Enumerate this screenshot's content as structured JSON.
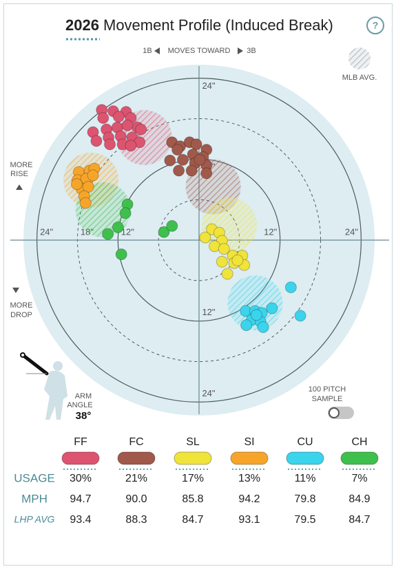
{
  "header": {
    "year": "2026",
    "title": "Movement Profile (Induced Break)",
    "help": "?"
  },
  "chart_data": {
    "type": "scatter",
    "direction": {
      "left": "1B",
      "middle": "MOVES TOWARD",
      "right": "3B"
    },
    "rise_label": [
      "MORE",
      "RISE"
    ],
    "drop_label": [
      "MORE",
      "DROP"
    ],
    "avg_legend": "MLB AVG.",
    "xlim": [
      -26,
      26
    ],
    "ylim": [
      -26,
      26
    ],
    "rings": [
      6,
      12,
      18,
      24
    ],
    "xticks": [
      {
        "value": -24,
        "label": "24\""
      },
      {
        "value": -18,
        "label": "18\""
      },
      {
        "value": -12,
        "label": "12\""
      },
      {
        "value": 12,
        "label": "12\""
      },
      {
        "value": 24,
        "label": "24\""
      }
    ],
    "yticks": [
      {
        "value": 24,
        "label": "24\""
      },
      {
        "value": 12,
        "label": "12\""
      },
      {
        "value": -12,
        "label": "12\""
      },
      {
        "value": -24,
        "label": "24\""
      }
    ],
    "series": [
      {
        "name": "FF",
        "color": "#dc5470",
        "avg_x": -8.1,
        "avg_y": 15.2,
        "x": [
          -14.4,
          -12.7,
          -10.8,
          -14.2,
          -11.9,
          -10.1,
          -9.1,
          -15.7,
          -13.7,
          -12.1,
          -10.6,
          -8.6,
          -15.2,
          -13.4,
          -11.6,
          -9.9,
          -13.2,
          -11.3,
          -8.8,
          -10.1
        ],
        "values": [
          19.3,
          19.1,
          19.0,
          18.1,
          18.3,
          18.1,
          16.7,
          16.0,
          16.4,
          16.7,
          17.0,
          16.4,
          14.7,
          15.2,
          15.4,
          15.2,
          14.2,
          14.2,
          14.5,
          14.0
        ]
      },
      {
        "name": "FC",
        "color": "#a0594a",
        "avg_x": 2.1,
        "avg_y": 7.9,
        "x": [
          -4.0,
          -2.8,
          -1.4,
          -0.4,
          -3.2,
          1.1,
          -0.9,
          0.6,
          -4.3,
          -2.4,
          -0.6,
          1.1,
          -3.0,
          -1.1,
          1.1,
          0.1
        ],
        "values": [
          14.5,
          13.9,
          14.5,
          14.2,
          13.4,
          13.4,
          12.7,
          12.3,
          11.8,
          11.9,
          11.4,
          11.1,
          10.3,
          10.3,
          9.9,
          11.9
        ]
      },
      {
        "name": "SL",
        "color": "#f0e33a",
        "avg_x": 4.5,
        "avg_y": 2.2,
        "x": [
          1.9,
          3.0,
          0.9,
          3.4,
          2.3,
          3.7,
          5.0,
          6.4,
          3.4,
          5.2,
          6.7,
          4.2,
          5.7
        ],
        "values": [
          1.6,
          1.1,
          0.4,
          -0.1,
          -0.9,
          -1.3,
          -2.3,
          -2.3,
          -3.2,
          -3.4,
          -3.7,
          -5.0,
          -3.0
        ]
      },
      {
        "name": "SI",
        "color": "#f7a52a",
        "avg_x": -16.0,
        "avg_y": 8.9,
        "x": [
          -17.8,
          -16.2,
          -18.0,
          -16.7,
          -15.5,
          -15.7,
          -17.4,
          -16.4,
          -17.0,
          -16.8,
          -18.1
        ],
        "values": [
          10.1,
          10.3,
          8.9,
          9.1,
          10.6,
          9.6,
          7.6,
          7.9,
          6.5,
          5.5,
          8.3
        ]
      },
      {
        "name": "CU",
        "color": "#3ad4ec",
        "avg_x": 8.3,
        "avg_y": -9.3,
        "x": [
          13.6,
          6.9,
          8.3,
          9.3,
          10.8,
          7.8,
          9.1,
          7.0,
          9.5,
          15.0,
          8.5
        ],
        "values": [
          -7.0,
          -10.5,
          -10.5,
          -10.8,
          -10.1,
          -11.8,
          -12.1,
          -12.6,
          -12.9,
          -11.2,
          -11.1
        ]
      },
      {
        "name": "CH",
        "color": "#3fbf4c",
        "avg_x": -14.2,
        "avg_y": 4.5,
        "x": [
          -10.6,
          -10.9,
          -12.0,
          -13.5,
          -5.2,
          -4.0,
          -11.5
        ],
        "values": [
          5.3,
          4.0,
          1.9,
          0.9,
          1.2,
          2.1,
          -2.1
        ]
      }
    ]
  },
  "arm": {
    "label": [
      "ARM",
      "ANGLE"
    ],
    "value": "38°"
  },
  "sample": {
    "label": [
      "100 PITCH",
      "SAMPLE"
    ]
  },
  "table": {
    "rows": [
      {
        "label": "USAGE",
        "cells": [
          "30%",
          "21%",
          "17%",
          "13%",
          "11%",
          "7%"
        ]
      },
      {
        "label": "MPH",
        "cells": [
          "94.7",
          "90.0",
          "85.8",
          "94.2",
          "79.8",
          "84.9"
        ]
      },
      {
        "label": "LHP AVG",
        "cells": [
          "93.4",
          "88.3",
          "84.7",
          "93.1",
          "79.5",
          "84.7"
        ]
      }
    ]
  }
}
